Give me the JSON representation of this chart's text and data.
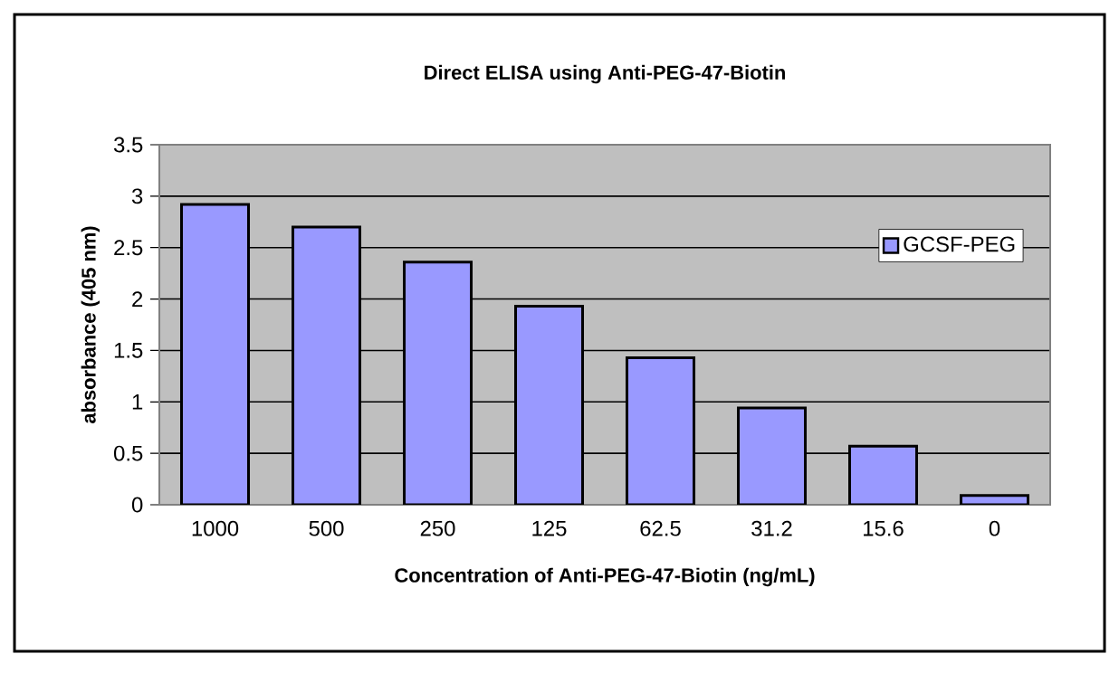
{
  "chart_data": {
    "type": "bar",
    "title": "Direct ELISA using Anti-PEG-47-Biotin",
    "xlabel": "Concentration of Anti-PEG-47-Biotin (ng/mL)",
    "ylabel": "absorbance (405 nm)",
    "categories": [
      "1000",
      "500",
      "250",
      "125",
      "62.5",
      "31.2",
      "15.6",
      "0"
    ],
    "series": [
      {
        "name": "GCSF-PEG",
        "color": "#9999ff",
        "values": [
          2.92,
          2.7,
          2.36,
          1.93,
          1.43,
          0.94,
          0.57,
          0.09
        ]
      }
    ],
    "ylim": [
      0,
      3.5
    ],
    "yticks": [
      0,
      0.5,
      1,
      1.5,
      2,
      2.5,
      3,
      3.5
    ],
    "grid": "y",
    "legend": "right"
  }
}
